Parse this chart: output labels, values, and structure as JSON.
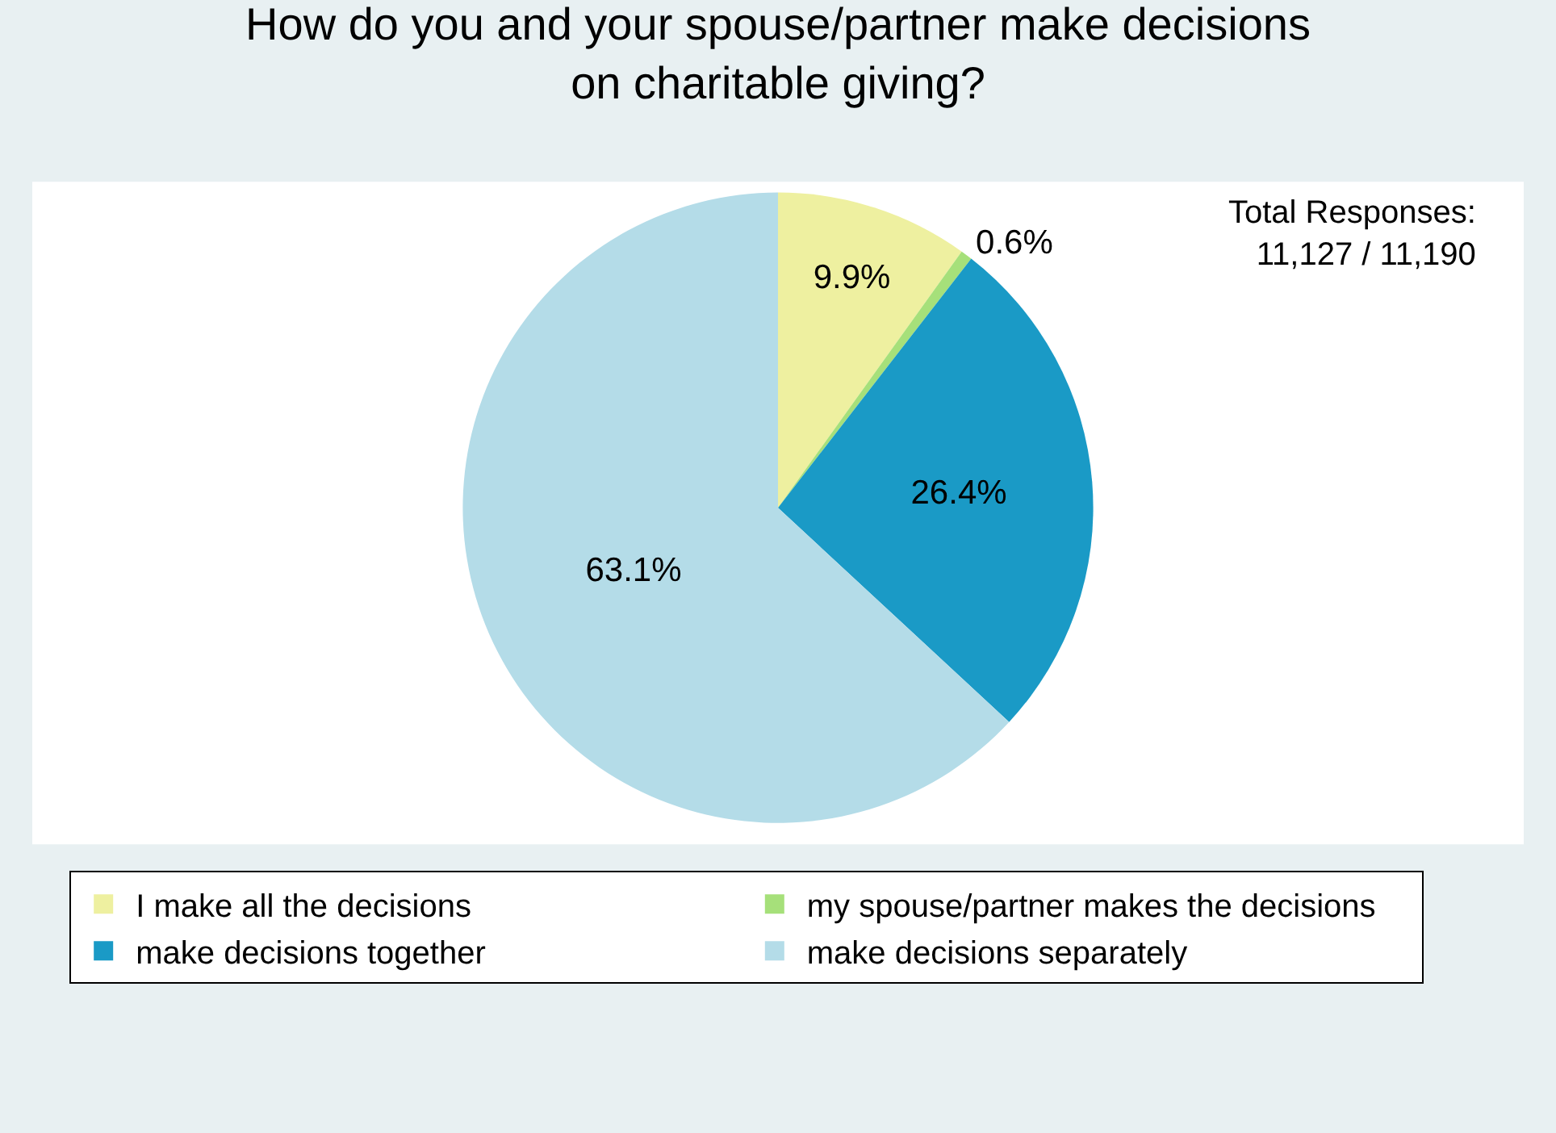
{
  "chart_data": {
    "type": "pie",
    "title": "How do you and your spouse/partner make decisions\non charitable giving?",
    "categories": [
      "I make all the decisions",
      "my spouse/partner makes the decisions",
      "make decisions together",
      "make decisions separately"
    ],
    "values": [
      9.9,
      0.6,
      26.4,
      63.1
    ],
    "colors": [
      "#eef0a0",
      "#a6e07a",
      "#1a9ac6",
      "#b4dce8"
    ],
    "value_labels": [
      "9.9%",
      "0.6%",
      "26.4%",
      "63.1%"
    ],
    "legend": "bottom",
    "annotations": [
      "Total Responses:\n11,127 / 11,190"
    ]
  }
}
